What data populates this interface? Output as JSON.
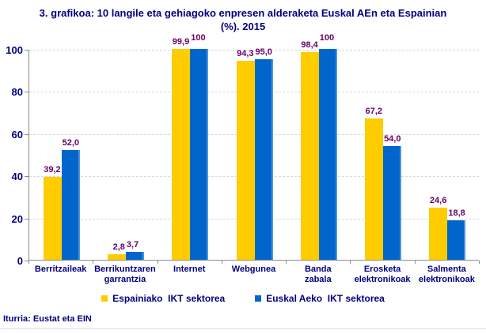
{
  "source_note": "Iturria: Eustat eta EIN",
  "colors": {
    "navy": "#000080",
    "label-purple": "#660066",
    "grid": "#D9D9D9",
    "axis": "#8C8C8C",
    "bottom-rule": "#D5DCE4"
  },
  "chart_data": {
    "type": "bar",
    "title": "3. grafikoa: 10 langile eta gehiagoko enpresen alderaketa Euskal AEn eta Espainian (%). 2015",
    "categories": [
      "Berritzaileak",
      "Berrikuntzaren garrantzia",
      "Internet",
      "Webgunea",
      "Banda zabala",
      "Erosketa elektronikoak",
      "Salmenta elektronikoak"
    ],
    "series": [
      {
        "name": "Espainiako  IKT sektorea",
        "color": "#FFCC00",
        "values": [
          39.2,
          2.8,
          99.9,
          94.3,
          98.4,
          67.2,
          24.6
        ],
        "labels": [
          "39,2",
          "2,8",
          "99,9",
          "94,3",
          "98,4",
          "67,2",
          "24,6"
        ]
      },
      {
        "name": "Euskal Aeko  IKT sektorea",
        "color": "#0066CC",
        "values": [
          52.0,
          3.7,
          100,
          95.0,
          100,
          54.0,
          18.8
        ],
        "labels": [
          "52,0",
          "3,7",
          "100",
          "95,0",
          "100",
          "54,0",
          "18,8"
        ]
      }
    ],
    "xlabel": "",
    "ylabel": "",
    "ylim": [
      0,
      100
    ],
    "yticks": [
      0,
      20,
      40,
      60,
      80,
      100
    ],
    "grid": "horizontal-dashed",
    "legend_position": "bottom"
  }
}
